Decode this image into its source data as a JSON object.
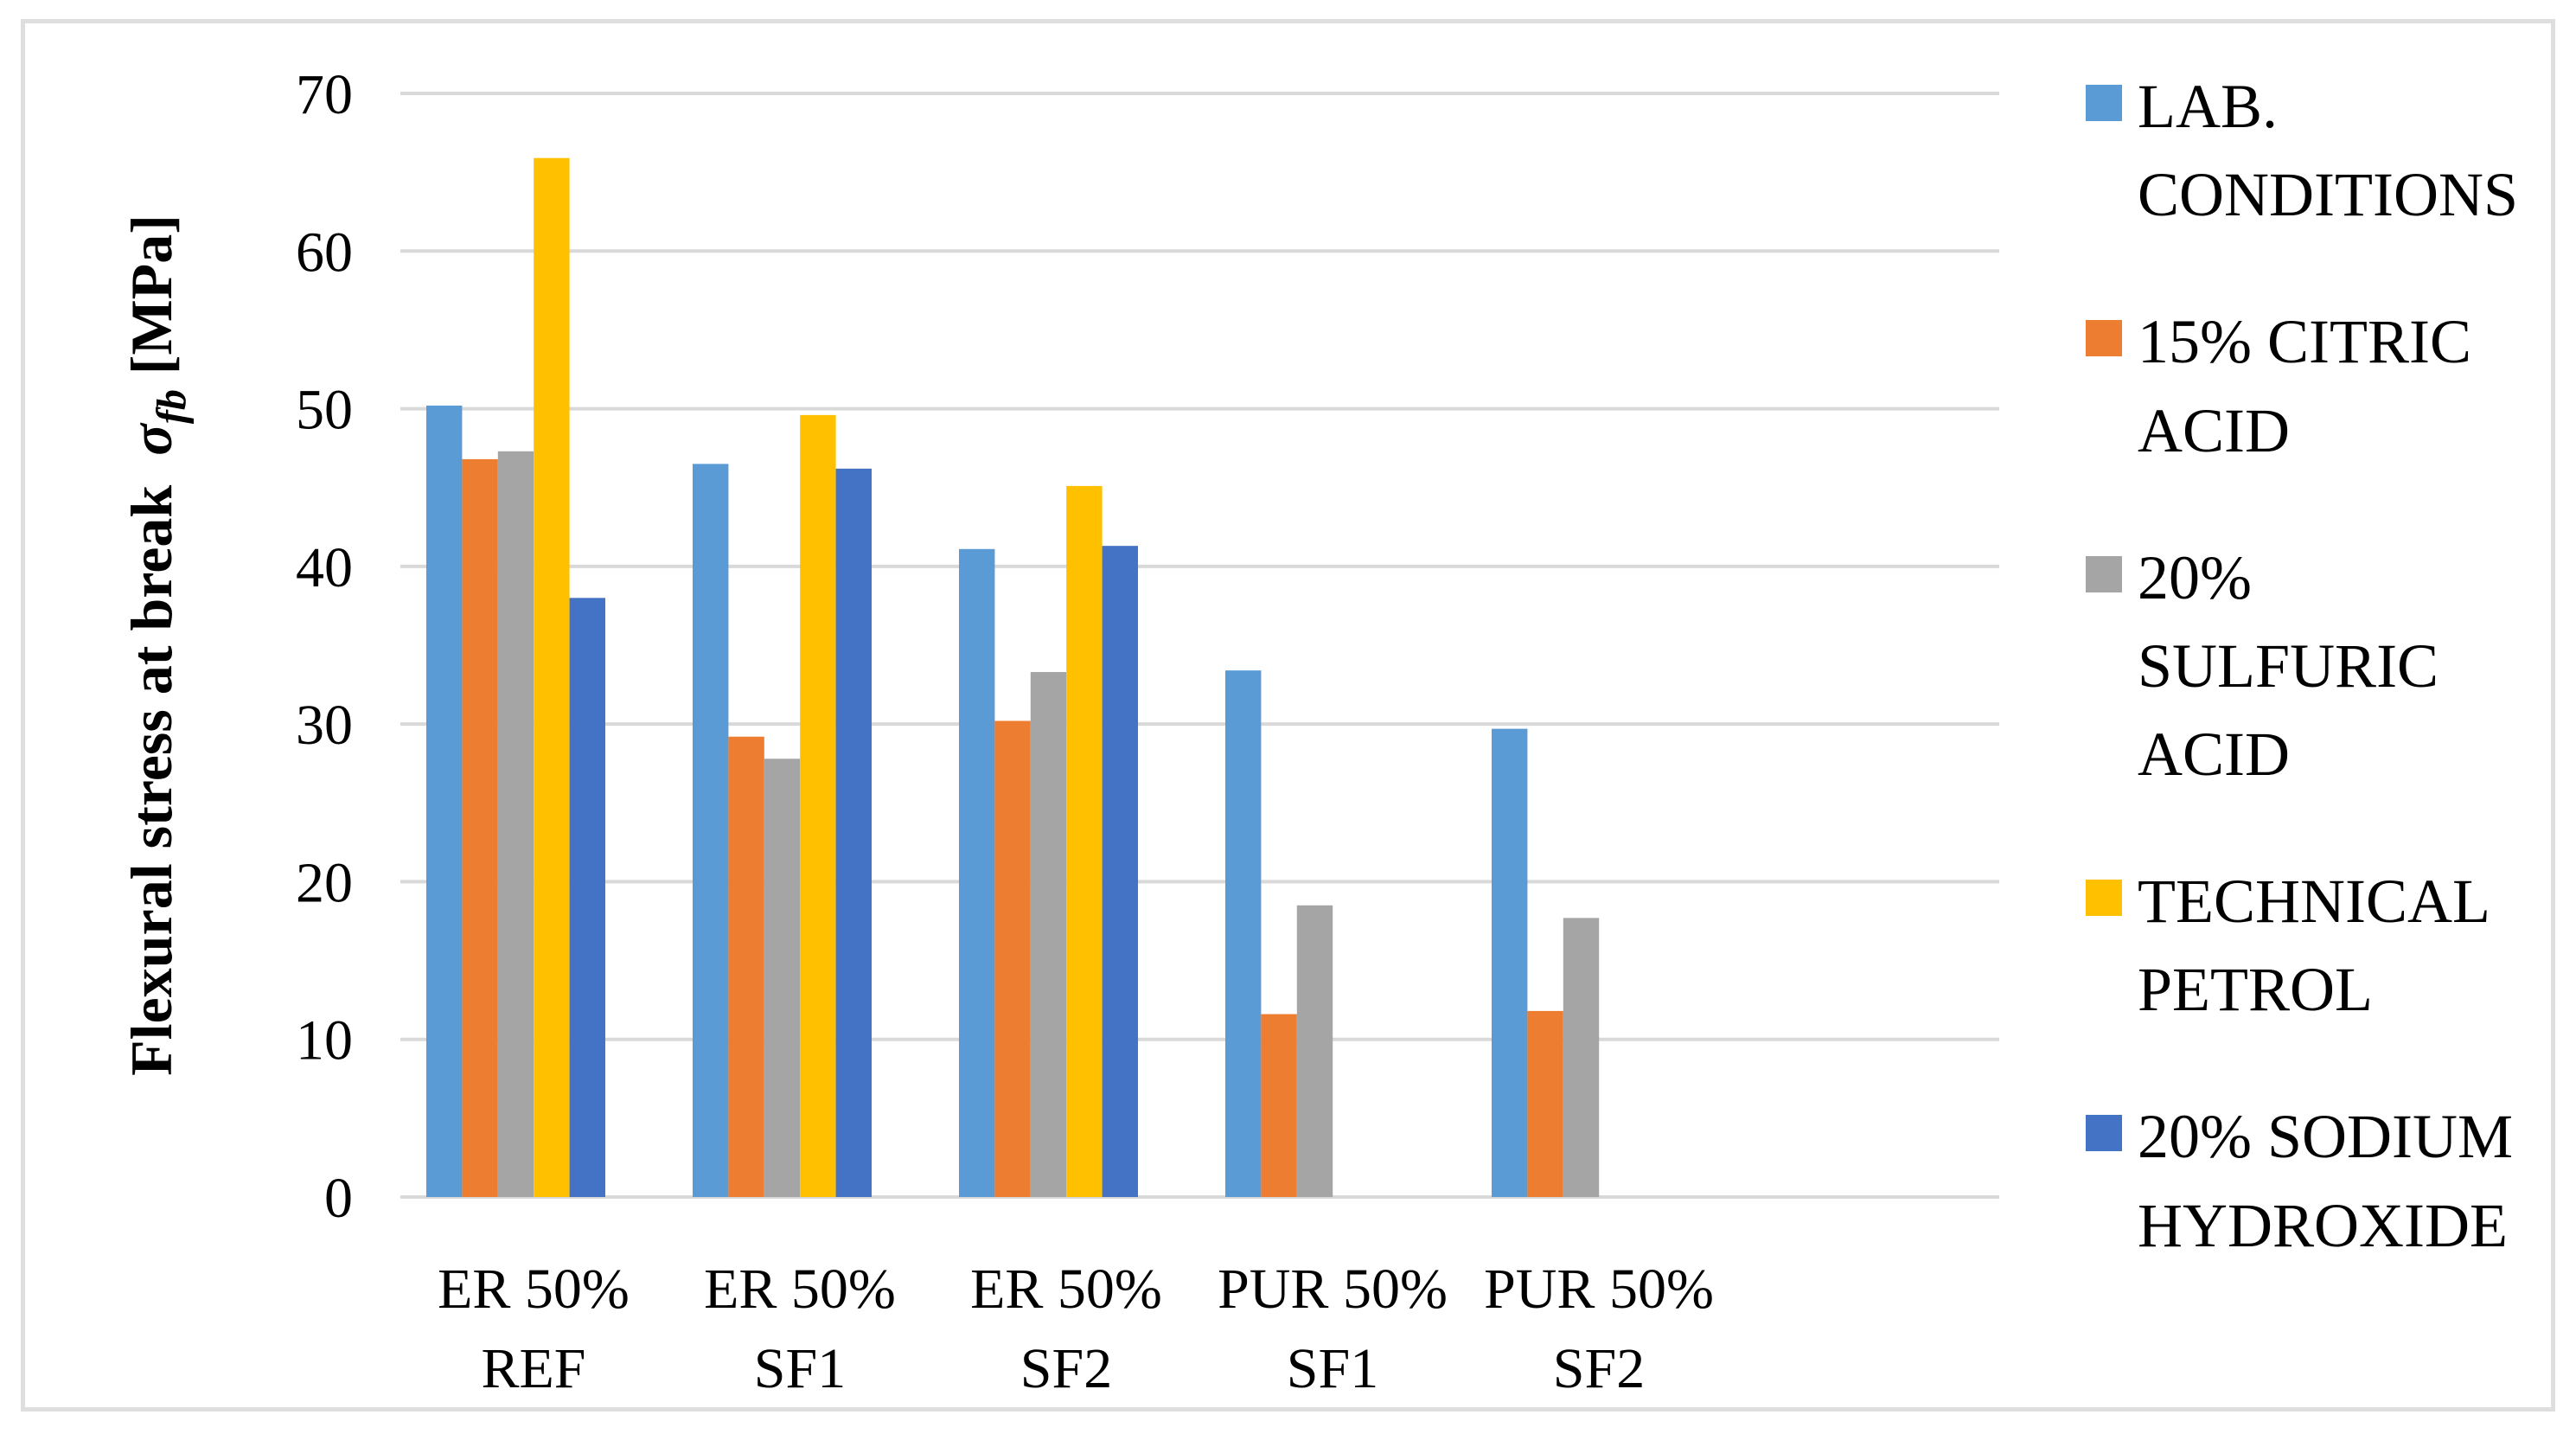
{
  "figure": {
    "background": "#FFFFFF",
    "border_color": "#DEDEDE"
  },
  "y_axis": {
    "title": {
      "prefix": "Flexural stress at break  ",
      "sigma": "σ",
      "subscript": "fb",
      "suffix": " [MPa]"
    }
  },
  "chart_data": {
    "type": "bar",
    "title": "",
    "xlabel": "",
    "ylabel": "Flexural stress at break σfb [MPa]",
    "ylim": [
      0,
      70
    ],
    "ytick_step": 10,
    "grid": true,
    "gridline_color": "#D9D9D9",
    "legend_position": "right",
    "categories": [
      "ER 50% REF",
      "ER 50% SF1",
      "ER 50% SF2",
      "PUR 50% SF1",
      "PUR 50% SF2"
    ],
    "category_label_lines": [
      [
        "ER 50%",
        "REF"
      ],
      [
        "ER 50%",
        "SF1"
      ],
      [
        "ER 50%",
        "SF2"
      ],
      [
        "PUR 50%",
        "SF1"
      ],
      [
        "PUR 50%",
        "SF2"
      ]
    ],
    "series": [
      {
        "name": "LAB. CONDITIONS",
        "color": "#5B9BD5",
        "values": [
          50.2,
          46.5,
          41.1,
          33.4,
          29.7
        ]
      },
      {
        "name": "15% CITRIC ACID",
        "color": "#ED7D31",
        "values": [
          46.8,
          29.2,
          30.2,
          11.6,
          11.8
        ]
      },
      {
        "name": "20% SULFURIC ACID",
        "color": "#A5A5A5",
        "values": [
          47.3,
          27.8,
          33.3,
          18.5,
          17.7
        ]
      },
      {
        "name": "TECHNICAL PETROL",
        "color": "#FFC000",
        "values": [
          65.9,
          49.6,
          45.1,
          0,
          0
        ]
      },
      {
        "name": "20% SODIUM HYDROXIDE",
        "color": "#4472C4",
        "values": [
          38.0,
          46.2,
          41.3,
          0,
          0
        ]
      }
    ]
  }
}
